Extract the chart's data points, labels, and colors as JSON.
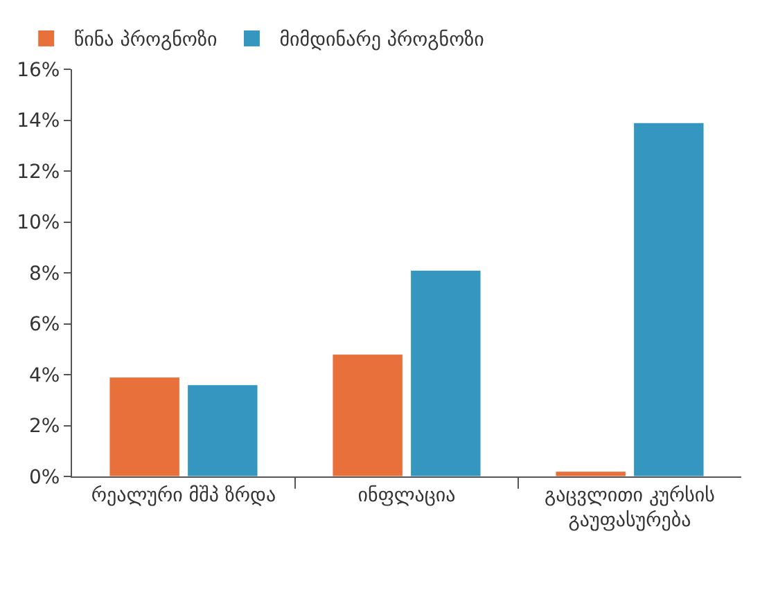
{
  "chart_data": {
    "type": "bar",
    "categories": [
      "რეალური მშპ ზრდა",
      "ინფლაცია",
      "გაცვლითი კურსის გაუფასურება"
    ],
    "series": [
      {
        "name": "წინა პროგნოზი",
        "color": "#e8703a",
        "values": [
          3.9,
          4.8,
          0.2
        ]
      },
      {
        "name": "მიმდინარე პროგნოზი",
        "color": "#3596c0",
        "values": [
          3.6,
          8.1,
          13.9
        ]
      }
    ],
    "ylim": [
      0,
      16
    ],
    "yticks": [
      {
        "value": 0,
        "label": "0%"
      },
      {
        "value": 2,
        "label": "2%"
      },
      {
        "value": 4,
        "label": "4%"
      },
      {
        "value": 6,
        "label": "6%"
      },
      {
        "value": 8,
        "label": "8%"
      },
      {
        "value": 10,
        "label": "10%"
      },
      {
        "value": 12,
        "label": "12%"
      },
      {
        "value": 14,
        "label": "14%"
      },
      {
        "value": 16,
        "label": "16%"
      }
    ],
    "grid": false,
    "legend": "top"
  }
}
